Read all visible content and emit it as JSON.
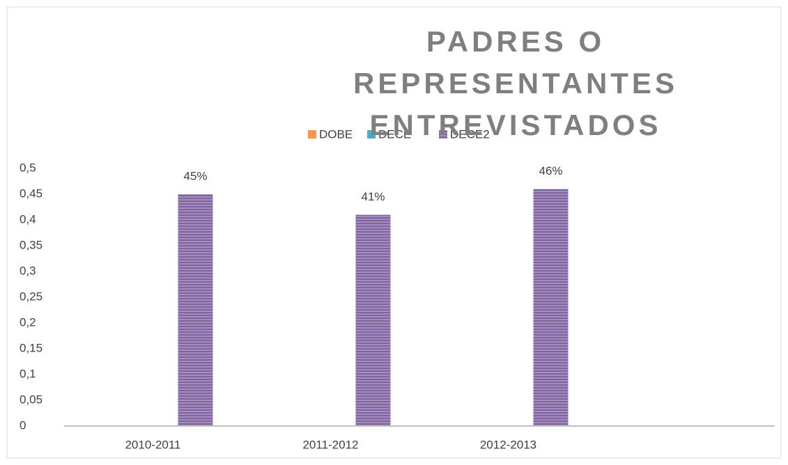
{
  "chart_data": {
    "type": "bar",
    "title": "PADRES O REPRESENTANTES ENTREVISTADOS",
    "categories": [
      "2010-2011",
      "2011-2012",
      "2012-2013",
      null
    ],
    "series": [
      {
        "name": "DOBE",
        "color": "#f79646",
        "values": [
          null,
          null,
          null,
          null
        ]
      },
      {
        "name": "DECE",
        "color": "#4bacc6",
        "values": [
          null,
          null,
          null,
          null
        ]
      },
      {
        "name": "DECE2",
        "color": "#8064a2",
        "values": [
          0.45,
          0.41,
          0.46,
          null
        ],
        "value_labels": [
          "45%",
          "41%",
          "46%",
          null
        ]
      }
    ],
    "ylim": [
      0,
      0.5
    ],
    "yticks": [
      0,
      {
        "value": 0.05,
        "label": "0,05"
      },
      {
        "value": 0.1,
        "label": "0,1"
      },
      {
        "value": 0.15,
        "label": "0,15"
      },
      {
        "value": 0.2,
        "label": "0,2"
      },
      {
        "value": 0.25,
        "label": "0,25"
      },
      {
        "value": 0.3,
        "label": "0,3"
      },
      {
        "value": 0.35,
        "label": "0,35"
      },
      {
        "value": 0.4,
        "label": "0,4"
      },
      {
        "value": 0.45,
        "label": "0,45"
      },
      {
        "value": 0.5,
        "label": "0,5"
      }
    ],
    "grid": false,
    "legend": "top"
  }
}
